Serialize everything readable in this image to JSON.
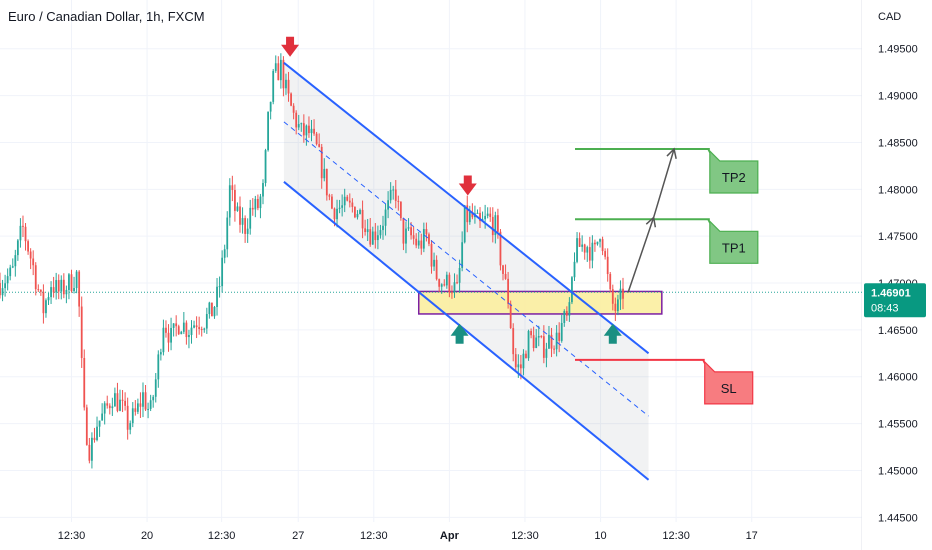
{
  "header": {
    "title": "Euro / Canadian Dollar, 1h, FXCM"
  },
  "colors": {
    "up": "#26a69a",
    "down": "#ef5350",
    "channel": "#2962ff",
    "zone_fill": "#fbeea0",
    "zone_border": "#7b1fa2",
    "tp": "#4caf50",
    "tp_fill": "#81c784",
    "sl": "#f23645",
    "sl_fill": "#f77c80",
    "arrow_down": "#e0303c",
    "arrow_up": "#1a8f82",
    "price_badge": "#089981",
    "last_price_line": "#26a69a",
    "grid": "#f0f3fa",
    "text": "#131722"
  },
  "chart_data": {
    "type": "candlestick",
    "title": "Euro / Canadian Dollar, 1h, FXCM",
    "currency": "CAD",
    "y_axis": {
      "position": "right",
      "range": [
        1.4445,
        1.497
      ],
      "tick_labels": [
        "1.49500",
        "1.49000",
        "1.48500",
        "1.48000",
        "1.47500",
        "1.47000",
        "1.46500",
        "1.46000",
        "1.45500",
        "1.45000",
        "1.44500"
      ],
      "tick_values": [
        1.495,
        1.49,
        1.485,
        1.48,
        1.475,
        1.47,
        1.465,
        1.46,
        1.455,
        1.45,
        1.445
      ]
    },
    "x_axis": {
      "tick_labels": [
        "12:30",
        "20",
        "12:30",
        "27",
        "12:30",
        "Apr",
        "12:30",
        "10",
        "12:30",
        "17"
      ],
      "tick_index": [
        70,
        144,
        217,
        292,
        366,
        440,
        514,
        588,
        662,
        736
      ],
      "bold_label": "Apr",
      "index_range": [
        0,
        844
      ]
    },
    "grid": true,
    "last_price": {
      "value": 1.46901,
      "label": "1.46901",
      "countdown": "08:43"
    },
    "price_path": [
      [
        0,
        1.47
      ],
      [
        12,
        1.471
      ],
      [
        22,
        1.476
      ],
      [
        32,
        1.472
      ],
      [
        42,
        1.467
      ],
      [
        50,
        1.47
      ],
      [
        58,
        1.469
      ],
      [
        68,
        1.47
      ],
      [
        76,
        1.471
      ],
      [
        82,
        1.456
      ],
      [
        88,
        1.452
      ],
      [
        95,
        1.455
      ],
      [
        102,
        1.456
      ],
      [
        110,
        1.458
      ],
      [
        118,
        1.457
      ],
      [
        125,
        1.455
      ],
      [
        133,
        1.456
      ],
      [
        140,
        1.458
      ],
      [
        147,
        1.456
      ],
      [
        153,
        1.46
      ],
      [
        160,
        1.466
      ],
      [
        168,
        1.464
      ],
      [
        176,
        1.466
      ],
      [
        184,
        1.465
      ],
      [
        192,
        1.466
      ],
      [
        200,
        1.466
      ],
      [
        208,
        1.467
      ],
      [
        214,
        1.469
      ],
      [
        220,
        1.474
      ],
      [
        225,
        1.48
      ],
      [
        232,
        1.477
      ],
      [
        240,
        1.476
      ],
      [
        246,
        1.478
      ],
      [
        252,
        1.478
      ],
      [
        258,
        1.48
      ],
      [
        263,
        1.488
      ],
      [
        268,
        1.492
      ],
      [
        275,
        1.493
      ],
      [
        281,
        1.49
      ],
      [
        287,
        1.488
      ],
      [
        295,
        1.486
      ],
      [
        303,
        1.486
      ],
      [
        311,
        1.484
      ],
      [
        318,
        1.481
      ],
      [
        325,
        1.478
      ],
      [
        333,
        1.478
      ],
      [
        341,
        1.478
      ],
      [
        348,
        1.478
      ],
      [
        356,
        1.477
      ],
      [
        364,
        1.475
      ],
      [
        372,
        1.476
      ],
      [
        380,
        1.478
      ],
      [
        387,
        1.48
      ],
      [
        394,
        1.475
      ],
      [
        402,
        1.475
      ],
      [
        410,
        1.474
      ],
      [
        418,
        1.475
      ],
      [
        426,
        1.471
      ],
      [
        434,
        1.47
      ],
      [
        441,
        1.47
      ],
      [
        448,
        1.469
      ],
      [
        455,
        1.477
      ],
      [
        462,
        1.477
      ],
      [
        470,
        1.476
      ],
      [
        478,
        1.477
      ],
      [
        485,
        1.476
      ],
      [
        491,
        1.472
      ],
      [
        498,
        1.468
      ],
      [
        504,
        1.461
      ],
      [
        510,
        1.461
      ],
      [
        517,
        1.464
      ],
      [
        524,
        1.464
      ],
      [
        531,
        1.463
      ],
      [
        538,
        1.464
      ],
      [
        545,
        1.464
      ],
      [
        552,
        1.466
      ],
      [
        557,
        1.466
      ],
      [
        562,
        1.473
      ],
      [
        568,
        1.474
      ],
      [
        575,
        1.474
      ],
      [
        582,
        1.473
      ],
      [
        588,
        1.476
      ],
      [
        593,
        1.472
      ],
      [
        598,
        1.468
      ],
      [
        604,
        1.467
      ],
      [
        610,
        1.469
      ]
    ],
    "annotations": {
      "channel_upper": [
        [
          278,
          1.4935
        ],
        [
          635,
          1.4625
        ]
      ],
      "channel_lower": [
        [
          278,
          1.4808
        ],
        [
          635,
          1.449
        ]
      ],
      "channel_mid": [
        [
          278,
          1.4872
        ],
        [
          635,
          1.4558
        ]
      ],
      "zone": {
        "x": [
          410,
          648
        ],
        "y": [
          1.4667,
          1.4691
        ]
      },
      "arrows_down": [
        [
          284,
          1.495
        ],
        [
          458,
          1.4802
        ]
      ],
      "arrows_up": [
        [
          450,
          1.4648
        ],
        [
          600,
          1.4648
        ]
      ],
      "projection": [
        [
          615,
          1.469
        ],
        [
          640,
          1.477
        ],
        [
          660,
          1.4843
        ]
      ],
      "levels": [
        {
          "name": "TP2",
          "value": 1.4843,
          "x": [
            563,
            695
          ]
        },
        {
          "name": "TP1",
          "value": 1.4768,
          "x": [
            563,
            695
          ]
        },
        {
          "name": "SL",
          "value": 1.4618,
          "x": [
            563,
            690
          ]
        }
      ]
    }
  }
}
